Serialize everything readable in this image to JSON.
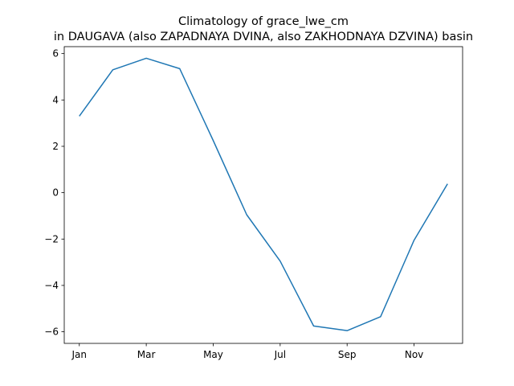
{
  "chart_data": {
    "type": "line",
    "title": "Climatology of grace_lwe_cm",
    "subtitle": "in DAUGAVA (also ZAPADNAYA DVINA, also ZAKHODNAYA DZVINA) basin",
    "xlabel": "",
    "ylabel": "",
    "x_tick_labels": [
      "Jan",
      "Mar",
      "May",
      "Jul",
      "Sep",
      "Nov"
    ],
    "x_tick_positions": [
      1,
      3,
      5,
      7,
      9,
      11
    ],
    "xlim": [
      0.55,
      12.45
    ],
    "ylim": [
      -6.5,
      6.3
    ],
    "y_ticks": [
      -6,
      -4,
      -2,
      0,
      2,
      4,
      6
    ],
    "y_tick_labels": [
      "−6",
      "−4",
      "−2",
      "0",
      "2",
      "4",
      "6"
    ],
    "grid": false,
    "series": [
      {
        "color": "#1f77b4",
        "x": [
          1,
          2,
          3,
          4,
          5,
          6,
          7,
          8,
          9,
          10,
          11,
          12
        ],
        "values": [
          3.3,
          5.3,
          5.8,
          5.35,
          2.25,
          -0.95,
          -2.95,
          -5.75,
          -5.95,
          -5.35,
          -2.05,
          0.38
        ]
      }
    ]
  }
}
